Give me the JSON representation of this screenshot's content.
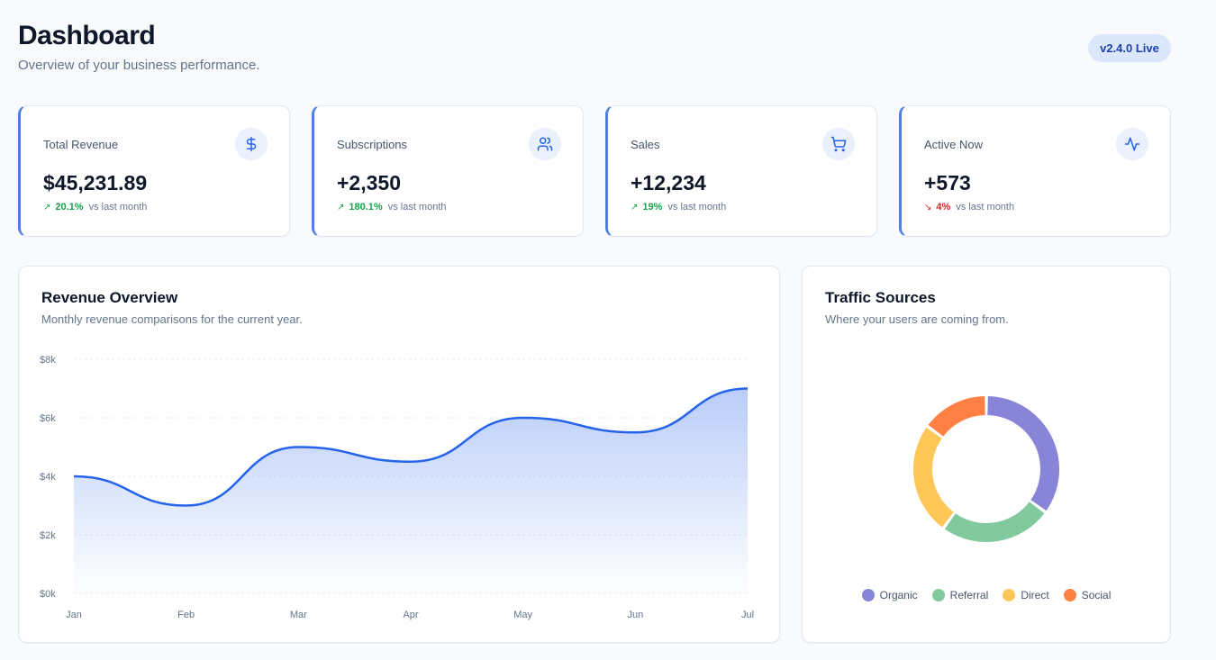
{
  "header": {
    "title": "Dashboard",
    "subtitle": "Overview of your business performance.",
    "version_badge": "v2.4.0 Live"
  },
  "stats": [
    {
      "label": "Total Revenue",
      "value": "$45,231.89",
      "change": "20.1%",
      "direction": "up",
      "change_label": "vs last month",
      "icon": "dollar-icon"
    },
    {
      "label": "Subscriptions",
      "value": "+2,350",
      "change": "180.1%",
      "direction": "up",
      "change_label": "vs last month",
      "icon": "users-icon"
    },
    {
      "label": "Sales",
      "value": "+12,234",
      "change": "19%",
      "direction": "up",
      "change_label": "vs last month",
      "icon": "cart-icon"
    },
    {
      "label": "Active Now",
      "value": "+573",
      "change": "4%",
      "direction": "down",
      "change_label": "vs last month",
      "icon": "activity-icon"
    }
  ],
  "revenue": {
    "title": "Revenue Overview",
    "subtitle": "Monthly revenue comparisons for the current year."
  },
  "traffic": {
    "title": "Traffic Sources",
    "subtitle": "Where your users are coming from."
  },
  "colors": {
    "accent": "#2563eb",
    "stat_border": "#4f7fe3",
    "up": "#16a34a",
    "down": "#dc2626"
  },
  "chart_data": [
    {
      "type": "area",
      "x": [
        "Jan",
        "Feb",
        "Mar",
        "Apr",
        "May",
        "Jun",
        "Jul"
      ],
      "series": [
        {
          "values": [
            4000,
            3000,
            5000,
            4500,
            6000,
            5500,
            7000
          ],
          "color": "#2563eb"
        }
      ],
      "ylim": [
        0,
        8000
      ],
      "yticks": [
        "$0k",
        "$2k",
        "$4k",
        "$6k",
        "$8k"
      ],
      "grid": true
    },
    {
      "type": "pie",
      "style": "donut",
      "categories": [
        "Organic",
        "Referral",
        "Direct",
        "Social"
      ],
      "values": [
        35,
        25,
        25,
        15
      ],
      "colors": [
        "#8884d8",
        "#82ca9d",
        "#ffc658",
        "#ff8042"
      ]
    }
  ]
}
